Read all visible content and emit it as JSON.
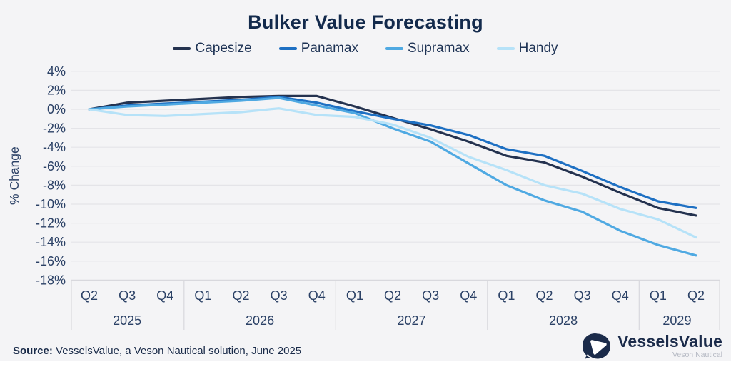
{
  "title": "Bulker Value Forecasting",
  "footer": {
    "source_label": "Source:",
    "source_text": " VesselsValue, a Veson Nautical solution, June 2025",
    "logo_name": "VesselsValue",
    "logo_sub": "Veson Nautical"
  },
  "chart_data": {
    "type": "line",
    "title": "Bulker Value Forecasting",
    "ylabel": "% Change",
    "ylim": [
      -18,
      4
    ],
    "yticks": [
      4,
      2,
      0,
      -2,
      -4,
      -6,
      -8,
      -10,
      -12,
      -14,
      -16,
      -18
    ],
    "grid": true,
    "legend_position": "top",
    "quarters": [
      "Q2",
      "Q3",
      "Q4",
      "Q1",
      "Q2",
      "Q3",
      "Q4",
      "Q1",
      "Q2",
      "Q3",
      "Q4",
      "Q1",
      "Q2",
      "Q3",
      "Q4",
      "Q1",
      "Q2"
    ],
    "year_groups": [
      {
        "year": "2025",
        "count": 3
      },
      {
        "year": "2026",
        "count": 4
      },
      {
        "year": "2027",
        "count": 4
      },
      {
        "year": "2028",
        "count": 4
      },
      {
        "year": "2029",
        "count": 2
      }
    ],
    "series": [
      {
        "name": "Capesize",
        "color": "#24324f",
        "values": [
          0.0,
          0.7,
          0.9,
          1.1,
          1.3,
          1.4,
          1.4,
          0.3,
          -0.9,
          -2.1,
          -3.4,
          -4.9,
          -5.6,
          -7.1,
          -8.8,
          -10.4,
          -11.2
        ]
      },
      {
        "name": "Panamax",
        "color": "#1e70c3",
        "values": [
          0.0,
          0.4,
          0.6,
          0.8,
          1.0,
          1.3,
          0.7,
          -0.2,
          -1.0,
          -1.7,
          -2.7,
          -4.2,
          -4.9,
          -6.5,
          -8.2,
          -9.7,
          -10.4
        ]
      },
      {
        "name": "Supramax",
        "color": "#4fa9e2",
        "values": [
          0.0,
          0.3,
          0.5,
          0.7,
          0.9,
          1.2,
          0.4,
          -0.4,
          -2.0,
          -3.4,
          -5.7,
          -8.0,
          -9.6,
          -10.8,
          -12.8,
          -14.3,
          -15.4
        ]
      },
      {
        "name": "Handy",
        "color": "#b6e2f8",
        "values": [
          0.0,
          -0.6,
          -0.7,
          -0.5,
          -0.3,
          0.1,
          -0.6,
          -0.8,
          -1.6,
          -3.0,
          -5.0,
          -6.4,
          -8.0,
          -8.9,
          -10.5,
          -11.6,
          -13.5
        ]
      }
    ],
    "colors": {
      "background": "#f4f4f6",
      "grid": "#e4e4e8",
      "axis": "#d8d8dd",
      "tick_text": "#2b4166",
      "title_text": "#132a4c"
    }
  }
}
